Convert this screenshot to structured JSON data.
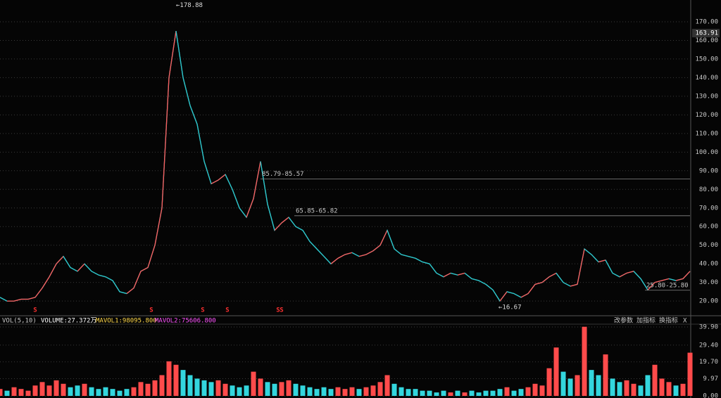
{
  "chart_data": [
    {
      "type": "line",
      "values": [
        22,
        20,
        20,
        21,
        21,
        22,
        27,
        33,
        40,
        44,
        38,
        36,
        40,
        36,
        34,
        33,
        31,
        25,
        24,
        27,
        36,
        38,
        50,
        70,
        140,
        165,
        140,
        125,
        115,
        95,
        83,
        85,
        88,
        80,
        70,
        65,
        75,
        95,
        72,
        58,
        62,
        65,
        60,
        58,
        52,
        48,
        44,
        40,
        43,
        45,
        46,
        44,
        45,
        47,
        50,
        58,
        48,
        45,
        44,
        43,
        41,
        40,
        35,
        33,
        35,
        34,
        35,
        32,
        31,
        29,
        26,
        20,
        25,
        24,
        22,
        24,
        29,
        30,
        33,
        35,
        30,
        28,
        29,
        48,
        45,
        41,
        42,
        35,
        33,
        35,
        36,
        32,
        26,
        30,
        31,
        32,
        31,
        32,
        36
      ],
      "color": "#2ec4c9",
      "ylim": [
        12.5,
        181.7
      ],
      "yticks": [
        {
          "value": 20,
          "label": "20.00"
        },
        {
          "value": 30,
          "label": "30.00"
        },
        {
          "value": 40,
          "label": "40.00"
        },
        {
          "value": 50,
          "label": "50.00"
        },
        {
          "value": 60,
          "label": "60.00"
        },
        {
          "value": 70,
          "label": "70.00"
        },
        {
          "value": 80,
          "label": "80.00"
        },
        {
          "value": 90,
          "label": "90.00"
        },
        {
          "value": 100,
          "label": "100.00"
        },
        {
          "value": 110,
          "label": "110.00"
        },
        {
          "value": 120,
          "label": "120.00"
        },
        {
          "value": 130,
          "label": "130.00"
        },
        {
          "value": 140,
          "label": "140.00"
        },
        {
          "value": 150,
          "label": "150.00"
        },
        {
          "value": 160,
          "label": "160.00"
        },
        {
          "value": 170,
          "label": "170.00"
        }
      ],
      "grid": true,
      "last_price": 163.91,
      "price_marks": [
        {
          "text": "←178.88",
          "value": 178.88
        },
        {
          "text": "←16.67",
          "value": 16.67
        }
      ],
      "levels": [
        {
          "text": "85.79-85.57",
          "value": 85.57
        },
        {
          "text": "65.85-65.82",
          "value": 65.82
        },
        {
          "text": "25.80-25.80",
          "value": 25.8
        }
      ],
      "signals": [
        "S",
        "S",
        "S",
        "S",
        "S",
        "S"
      ]
    },
    {
      "type": "bar",
      "values": [
        4,
        3,
        5,
        4,
        3,
        6,
        8,
        6,
        9,
        7,
        5,
        6,
        7,
        5,
        4,
        5,
        4,
        3,
        4,
        5,
        8,
        7,
        9,
        12,
        20,
        18,
        15,
        12,
        10,
        9,
        8,
        9,
        7,
        6,
        5,
        6,
        14,
        10,
        8,
        7,
        8,
        9,
        7,
        6,
        5,
        4,
        5,
        4,
        5,
        4,
        5,
        4,
        5,
        6,
        8,
        12,
        7,
        5,
        4,
        4,
        3,
        3,
        2,
        3,
        2,
        3,
        2,
        3,
        2,
        3,
        3,
        4,
        5,
        3,
        4,
        5,
        7,
        6,
        16,
        28,
        14,
        10,
        12,
        40,
        15,
        12,
        24,
        10,
        8,
        9,
        7,
        6,
        12,
        18,
        10,
        8,
        6,
        7,
        25
      ],
      "up_color": "#ff4b4b",
      "down_color": "#33d6dd",
      "ylim": [
        0,
        41.1
      ],
      "yticks": [
        {
          "value": 0,
          "label": "0.00"
        },
        {
          "value": 9.97,
          "label": "9.97"
        },
        {
          "value": 19.7,
          "label": "19.70"
        },
        {
          "value": 29.4,
          "label": "29.40"
        },
        {
          "value": 39.9,
          "label": "39.90"
        }
      ],
      "indicator": {
        "name": "VOL(5,10)",
        "volume": "VOLUME:27.372万",
        "mavol1": "MAVOL1:98095.800",
        "mavol2": "MAVOL2:75606.800"
      },
      "buttons": [
        "改参数",
        "加指标",
        "换指标",
        "X"
      ]
    }
  ]
}
